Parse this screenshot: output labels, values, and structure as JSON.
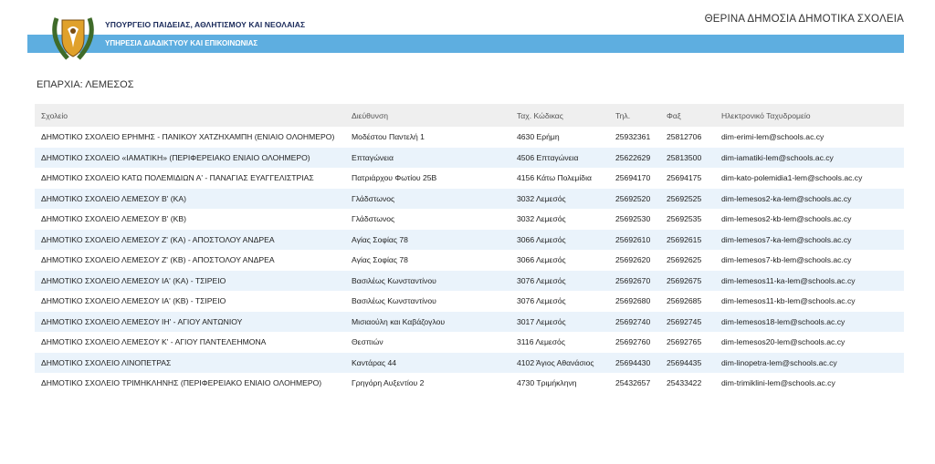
{
  "header": {
    "ministry": "ΥΠΟΥΡΓΕΙΟ ΠΑΙΔΕΙΑΣ, ΑΘΛΗΤΙΣΜΟΥ ΚΑΙ ΝΕΟΛΑΙΑΣ",
    "service": "ΥΠΗΡΕΣΙΑ ΔΙΑΔΙΚΤΥΟΥ ΚΑΙ ΕΠΙΚΟΙΝΩΝΙΑΣ",
    "title": "ΘΕΡΙΝΑ ΔΗΜΟΣΙΑ ΔΗΜΟΤΙΚΑ ΣΧΟΛΕΙΑ"
  },
  "district": "ΕΠΑΡΧΙΑ: ΛΕΜΕΣΟΣ",
  "table": {
    "columns": [
      "Σχολείο",
      "Διεύθυνση",
      "Ταχ. Κώδικας",
      "Τηλ.",
      "Φαξ",
      "Ηλεκτρονικό Ταχυδρομείο"
    ],
    "rows": [
      [
        "ΔΗΜΟΤΙΚΟ ΣΧΟΛΕΙΟ ΕΡΗΜΗΣ - ΠΑΝΙΚΟΥ ΧΑΤΖΗΧΑΜΠΗ (ΕΝΙΑΙΟ ΟΛΟΗΜΕΡΟ)",
        "Μοδέστου Παντελή 1",
        "4630 Ερήμη",
        "25932361",
        "25812706",
        "dim-erimi-lem@schools.ac.cy"
      ],
      [
        "ΔΗΜΟΤΙΚΟ ΣΧΟΛΕΙΟ «ΙΑΜΑΤΙΚΗ» (ΠΕΡΙΦΕΡΕΙΑΚΟ ΕΝΙΑΙΟ ΟΛΟΗΜΕΡΟ)",
        "Επταγώνεια",
        "4506 Επταγώνεια",
        "25622629",
        "25813500",
        "dim-iamatiki-lem@schools.ac.cy"
      ],
      [
        "ΔΗΜΟΤΙΚΟ ΣΧΟΛΕΙΟ ΚΑΤΩ ΠΟΛΕΜΙΔΙΩΝ Α'  - ΠΑΝΑΓΙΑΣ ΕΥΑΓΓΕΛΙΣΤΡΙΑΣ",
        "Πατριάρχου Φωτίου 25Β",
        "4156 Κάτω Πολεμίδια",
        "25694170",
        "25694175",
        "dim-kato-polemidia1-lem@schools.ac.cy"
      ],
      [
        "ΔΗΜΟΤΙΚΟ ΣΧΟΛΕΙΟ ΛΕΜΕΣΟΥ Β' (ΚΑ)",
        "Γλάδστωνος",
        "3032 Λεμεσός",
        "25692520",
        "25692525",
        "dim-lemesos2-ka-lem@schools.ac.cy"
      ],
      [
        "ΔΗΜΟΤΙΚΟ ΣΧΟΛΕΙΟ ΛΕΜΕΣΟΥ Β' (ΚΒ)",
        "Γλάδστωνος",
        "3032 Λεμεσός",
        "25692530",
        "25692535",
        "dim-lemesos2-kb-lem@schools.ac.cy"
      ],
      [
        "ΔΗΜΟΤΙΚΟ ΣΧΟΛΕΙΟ ΛΕΜΕΣΟΥ Ζ' (ΚΑ) - ΑΠΟΣΤΟΛΟΥ ΑΝΔΡΕΑ",
        "Αγίας Σοφίας 78",
        "3066 Λεμεσός",
        "25692610",
        "25692615",
        "dim-lemesos7-ka-lem@schools.ac.cy"
      ],
      [
        "ΔΗΜΟΤΙΚΟ ΣΧΟΛΕΙΟ ΛΕΜΕΣΟΥ Ζ' (ΚΒ) - ΑΠΟΣΤΟΛΟΥ ΑΝΔΡΕΑ",
        "Αγίας Σοφίας 78",
        "3066 Λεμεσός",
        "25692620",
        "25692625",
        "dim-lemesos7-kb-lem@schools.ac.cy"
      ],
      [
        "ΔΗΜΟΤΙΚΟ ΣΧΟΛΕΙΟ ΛΕΜΕΣΟΥ ΙΑ' (ΚΑ) - ΤΣΙΡΕΙΟ",
        "Βασιλέως Κωνσταντίνου",
        "3076 Λεμεσός",
        "25692670",
        "25692675",
        "dim-lemesos11-ka-lem@schools.ac.cy"
      ],
      [
        "ΔΗΜΟΤΙΚΟ ΣΧΟΛΕΙΟ ΛΕΜΕΣΟΥ ΙΑ' (ΚΒ) - ΤΣΙΡΕΙΟ",
        "Βασιλέως Κωνσταντίνου",
        "3076 Λεμεσός",
        "25692680",
        "25692685",
        "dim-lemesos11-kb-lem@schools.ac.cy"
      ],
      [
        "ΔΗΜΟΤΙΚΟ ΣΧΟΛΕΙΟ ΛΕΜΕΣΟΥ ΙΗ' - ΑΓΙΟΥ ΑΝΤΩΝΙΟΥ",
        "Μισιαούλη και Καβάζογλου",
        "3017 Λεμεσός",
        "25692740",
        "25692745",
        "dim-lemesos18-lem@schools.ac.cy"
      ],
      [
        "ΔΗΜΟΤΙΚΟ ΣΧΟΛΕΙΟ ΛΕΜΕΣΟΥ Κ' - ΑΓΙΟΥ ΠΑΝΤΕΛΕΗΜΟΝΑ",
        "Θεσπιών",
        "3116 Λεμεσός",
        "25692760",
        "25692765",
        "dim-lemesos20-lem@schools.ac.cy"
      ],
      [
        "ΔΗΜΟΤΙΚΟ ΣΧΟΛΕΙΟ ΛΙΝΟΠΕΤΡΑΣ",
        "Καντάρας 44",
        "4102 Άγιος Αθανάσιος",
        "25694430",
        "25694435",
        "dim-linopetra-lem@schools.ac.cy"
      ],
      [
        "ΔΗΜΟΤΙΚΟ ΣΧΟΛΕΙΟ ΤΡΙΜΗΚΛΗΝΗΣ (ΠΕΡΙΦΕΡΕΙΑΚΟ ΕΝΙΑΙΟ ΟΛΟΗΜΕΡΟ)",
        "Γρηγόρη Αυξεντίου 2",
        "4730 Τριμήκληνη",
        "25432657",
        "25433422",
        "dim-trimiklini-lem@schools.ac.cy"
      ]
    ]
  }
}
